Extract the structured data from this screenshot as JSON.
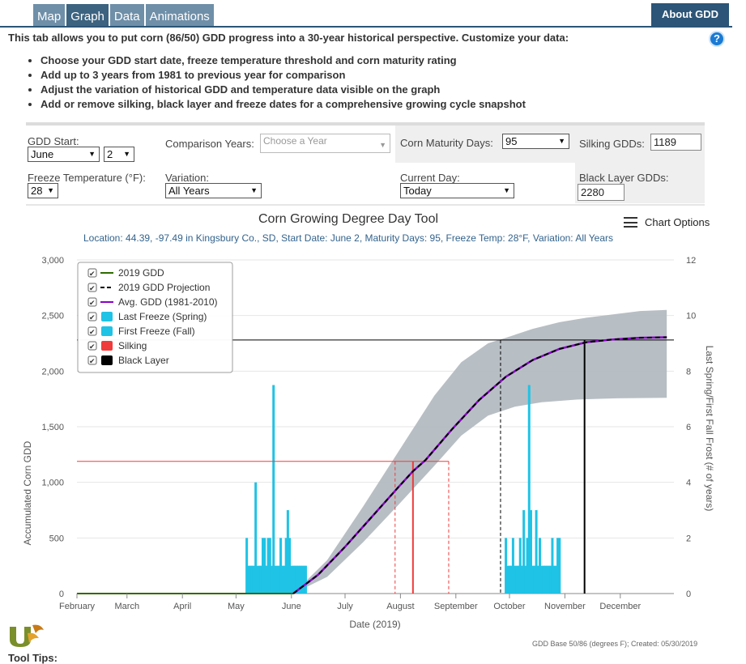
{
  "tabs": [
    {
      "label": "Map",
      "active": false
    },
    {
      "label": "Graph",
      "active": true
    },
    {
      "label": "Data",
      "active": false
    },
    {
      "label": "Animations",
      "active": false
    }
  ],
  "about_label": "About GDD",
  "help_icon": "?",
  "intro": "This tab allows you to put corn (86/50) GDD progress into a 30-year historical perspective. Customize your data:",
  "bullets": [
    "Choose your GDD start date, freeze temperature threshold and corn maturity rating",
    "Add up to 3 years from 1981 to previous year for comparison",
    "Adjust the variation of historical GDD and temperature data visible on the graph",
    "Add or remove silking, black layer and freeze dates for a comprehensive growing cycle snapshot"
  ],
  "controls": {
    "gdd_start_label": "GDD Start:",
    "gdd_start_month": "June",
    "gdd_start_day": "2",
    "comparison_label": "Comparison Years:",
    "comparison_placeholder": "Choose a Year",
    "maturity_label": "Corn Maturity Days:",
    "maturity_value": "95",
    "silking_label": "Silking GDDs:",
    "silking_value": "1189",
    "freeze_label": "Freeze Temperature (°F):",
    "freeze_value": "28",
    "variation_label": "Variation:",
    "variation_value": "All Years",
    "current_day_label": "Current Day:",
    "current_day_value": "Today",
    "black_layer_label": "Black Layer GDDs:",
    "black_layer_value": "2280"
  },
  "chart_options_label": "Chart Options",
  "colors": {
    "gdd2019": "#2e6b00",
    "projection": "#000000",
    "avg": "#8a00c8",
    "freeze": "#1fc3e5",
    "silking": "#ef3b3b",
    "black_layer": "#000000",
    "band": "#b3bac1"
  },
  "chart_data": {
    "type": "line",
    "title": "Corn Growing Degree Day Tool",
    "subtitle": "Location: 44.39, -97.49 in Kingsbury Co., SD, Start Date: June 2, Maturity Days: 95, Freeze Temp: 28°F, Variation: All Years",
    "xlabel": "Date (2019)",
    "ylabel": "Accumulated Corn GDD",
    "y2label": "Last Spring/First Fall Frost (# of years)",
    "x_ticks": [
      "February",
      "March",
      "April",
      "May",
      "June",
      "July",
      "August",
      "September",
      "October",
      "November",
      "December"
    ],
    "y_ticks": [
      "0",
      "500",
      "1,000",
      "1,500",
      "2,000",
      "2,500",
      "3,000"
    ],
    "y2_ticks": [
      "0",
      "2",
      "4",
      "6",
      "8",
      "10",
      "12"
    ],
    "ylim": [
      0,
      3000
    ],
    "y2lim": [
      0,
      12
    ],
    "legend": {
      "placement": "top-left",
      "items": [
        {
          "label": "2019 GDD",
          "symbol": "line",
          "color": "#2e6b00"
        },
        {
          "label": "2019 GDD Projection",
          "symbol": "dash",
          "color": "#000000"
        },
        {
          "label": "Avg. GDD (1981-2010)",
          "symbol": "line",
          "color": "#8a00c8"
        },
        {
          "label": "Last Freeze (Spring)",
          "symbol": "box",
          "color": "#1fc3e5"
        },
        {
          "label": "First Freeze (Fall)",
          "symbol": "box",
          "color": "#1fc3e5"
        },
        {
          "label": "Silking",
          "symbol": "box",
          "color": "#ef3b3b"
        },
        {
          "label": "Black Layer",
          "symbol": "box",
          "color": "#000000"
        }
      ]
    },
    "gdd_2019": [
      [
        0,
        0
      ],
      [
        121,
        0
      ]
    ],
    "avg_gdd": [
      [
        121,
        0
      ],
      [
        135,
        170
      ],
      [
        150,
        420
      ],
      [
        165,
        690
      ],
      [
        180,
        960
      ],
      [
        188,
        1100
      ],
      [
        195,
        1200
      ],
      [
        210,
        1480
      ],
      [
        225,
        1740
      ],
      [
        240,
        1950
      ],
      [
        255,
        2100
      ],
      [
        270,
        2200
      ],
      [
        285,
        2260
      ],
      [
        300,
        2285
      ],
      [
        315,
        2300
      ],
      [
        330,
        2305
      ]
    ],
    "band_upper": [
      [
        121,
        0
      ],
      [
        140,
        300
      ],
      [
        160,
        780
      ],
      [
        180,
        1280
      ],
      [
        200,
        1780
      ],
      [
        215,
        2080
      ],
      [
        230,
        2250
      ],
      [
        240,
        2300
      ],
      [
        255,
        2380
      ],
      [
        270,
        2440
      ],
      [
        285,
        2480
      ],
      [
        300,
        2510
      ],
      [
        315,
        2540
      ],
      [
        330,
        2550
      ]
    ],
    "band_lower": [
      [
        121,
        0
      ],
      [
        140,
        150
      ],
      [
        160,
        460
      ],
      [
        180,
        800
      ],
      [
        200,
        1150
      ],
      [
        215,
        1420
      ],
      [
        230,
        1600
      ],
      [
        245,
        1680
      ],
      [
        260,
        1720
      ],
      [
        280,
        1745
      ],
      [
        300,
        1755
      ],
      [
        330,
        1760
      ]
    ],
    "silking_gdd": 1189,
    "silking_day": 188,
    "silking_range": [
      178,
      208
    ],
    "black_layer_gdd": 2280,
    "black_layer_day": 284,
    "black_layer_range_start": 237,
    "spring_freeze_days": [
      95,
      96,
      97,
      98,
      99,
      100,
      101,
      102,
      103,
      104,
      105,
      106,
      107,
      108,
      109,
      110,
      111,
      112,
      113,
      114,
      115,
      116,
      117,
      118,
      119,
      120,
      121,
      122,
      123,
      124,
      125,
      126,
      127,
      128
    ],
    "spring_freeze_counts": [
      2,
      1,
      1,
      1,
      1,
      4,
      1,
      1,
      1,
      2,
      2,
      1,
      2,
      2,
      1,
      7.5,
      1,
      1,
      1,
      2,
      1,
      1,
      2,
      3,
      2,
      1,
      1,
      1,
      1,
      1,
      1,
      1,
      1,
      1
    ],
    "fall_freeze_days": [
      240,
      241,
      242,
      243,
      244,
      245,
      246,
      247,
      248,
      249,
      250,
      251,
      252,
      253,
      254,
      255,
      256,
      257,
      258,
      259,
      260,
      261,
      262,
      263,
      264,
      265,
      266,
      267,
      268,
      269,
      270
    ],
    "fall_freeze_counts": [
      2,
      1,
      1,
      1,
      2,
      1,
      1,
      1,
      2,
      1,
      3,
      1,
      2,
      7.5,
      3,
      1,
      1,
      3,
      1,
      2,
      1,
      1,
      1,
      1,
      1,
      1,
      2,
      1,
      1,
      2,
      2
    ]
  },
  "credits": "GDD Base 50/86 (degrees F); Created: 05/30/2019",
  "tool_tips_label": "Tool Tips:"
}
